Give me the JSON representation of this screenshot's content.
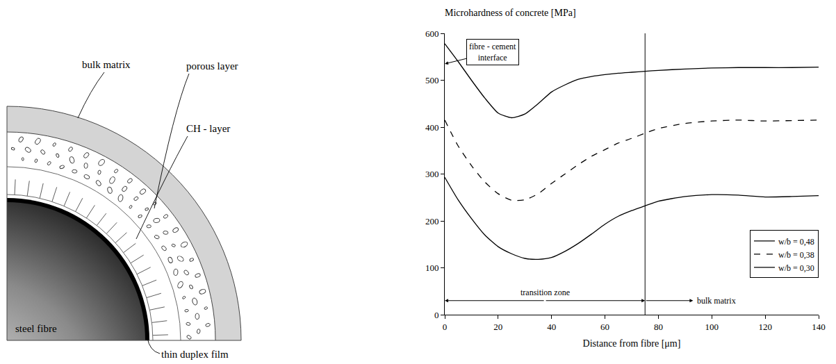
{
  "diagram": {
    "labels": {
      "bulk_matrix": "bulk matrix",
      "porous_layer": "porous layer",
      "ch_layer": "CH - layer",
      "steel_fibre": "steel fibre",
      "film": "thin duplex film"
    }
  },
  "chart_data": {
    "type": "line",
    "y_label": "Microhardness of concrete [MPa]",
    "x_label": "Distance from fibre [μm]",
    "x": [
      0,
      5,
      10,
      15,
      20,
      25,
      30,
      35,
      40,
      45,
      50,
      55,
      60,
      65,
      70,
      75,
      80,
      90,
      100,
      110,
      120,
      130,
      140
    ],
    "series": [
      {
        "name": "w/b = 0,48",
        "color": "#000000",
        "line_style": "solid",
        "values": [
          293,
          245,
          205,
          170,
          145,
          130,
          120,
          118,
          122,
          135,
          152,
          172,
          193,
          210,
          222,
          232,
          242,
          252,
          256,
          255,
          251,
          252,
          254
        ]
      },
      {
        "name": "w/b = 0,38",
        "color": "#000000",
        "line_style": "dash",
        "values": [
          415,
          360,
          318,
          283,
          258,
          244,
          245,
          258,
          280,
          300,
          320,
          338,
          352,
          366,
          376,
          387,
          397,
          408,
          413,
          415,
          413,
          414,
          415
        ]
      },
      {
        "name": "w/b = 0,30",
        "color": "#000000",
        "line_style": "solid",
        "values": [
          578,
          540,
          500,
          462,
          430,
          420,
          428,
          450,
          475,
          490,
          502,
          508,
          512,
          515,
          517,
          519,
          521,
          524,
          526,
          527,
          527,
          527,
          528
        ]
      }
    ],
    "xlim": [
      0,
      140
    ],
    "xticks": [
      0,
      20,
      40,
      60,
      80,
      100,
      120,
      140
    ],
    "ylim": [
      0,
      600
    ],
    "yticks": [
      0,
      100,
      200,
      300,
      400,
      500,
      600
    ],
    "legend": "lower right",
    "grid": false,
    "annotations": [
      {
        "text": "fibre - cement interface",
        "x": 0,
        "y": 535
      },
      {
        "text": "transition zone",
        "x": [
          0,
          75
        ],
        "y": 30
      },
      {
        "text": "bulk matrix",
        "x": [
          75,
          93
        ],
        "y": 30
      }
    ]
  }
}
